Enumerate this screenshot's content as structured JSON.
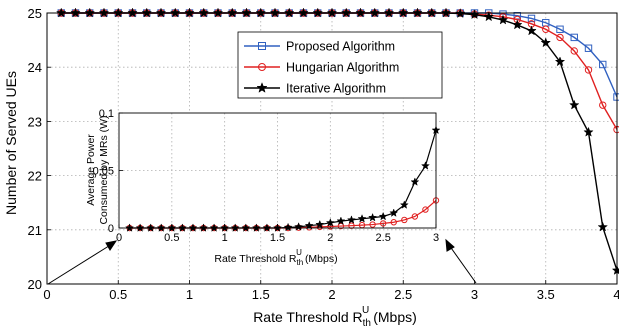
{
  "colors": {
    "proposed": "#3060c0",
    "hungarian": "#e02020",
    "iterative": "#000000"
  },
  "chart_data": [
    {
      "type": "line",
      "title": "",
      "xlabel": "Rate Threshold R",
      "xlabel_sub": "th",
      "xlabel_sup": "U",
      "xlabel_unit": "(Mbps)",
      "ylabel": "Number of Served UEs",
      "xlim": [
        0,
        4
      ],
      "ylim": [
        20,
        25
      ],
      "xticks": [
        "0",
        "0.5",
        "1",
        "1.5",
        "2",
        "2.5",
        "3",
        "3.5",
        "4"
      ],
      "yticks": [
        "20",
        "21",
        "22",
        "23",
        "24",
        "25"
      ],
      "grid": true,
      "legend_position": "top-right",
      "x": [
        0.1,
        0.2,
        0.3,
        0.4,
        0.5,
        0.6,
        0.7,
        0.8,
        0.9,
        1.0,
        1.1,
        1.2,
        1.3,
        1.4,
        1.5,
        1.6,
        1.7,
        1.8,
        1.9,
        2.0,
        2.1,
        2.2,
        2.3,
        2.4,
        2.5,
        2.6,
        2.7,
        2.8,
        2.9,
        3.0,
        3.1,
        3.2,
        3.3,
        3.4,
        3.5,
        3.6,
        3.7,
        3.8,
        3.9,
        4.0
      ],
      "series": [
        {
          "name": "Proposed Algorithm",
          "marker": "square",
          "values": [
            25,
            25,
            25,
            25,
            25,
            25,
            25,
            25,
            25,
            25,
            25,
            25,
            25,
            25,
            25,
            25,
            25,
            25,
            25,
            25,
            25,
            25,
            25,
            25,
            25,
            25,
            25,
            25,
            25,
            25,
            25,
            24.98,
            24.95,
            24.9,
            24.82,
            24.7,
            24.55,
            24.35,
            24.05,
            23.45
          ]
        },
        {
          "name": "Hungarian Algorithm",
          "marker": "circle",
          "values": [
            25,
            25,
            25,
            25,
            25,
            25,
            25,
            25,
            25,
            25,
            25,
            25,
            25,
            25,
            25,
            25,
            25,
            25,
            25,
            25,
            25,
            25,
            25,
            25,
            25,
            25,
            25,
            25,
            25,
            24.98,
            24.96,
            24.93,
            24.88,
            24.8,
            24.7,
            24.55,
            24.3,
            23.95,
            23.3,
            22.85
          ]
        },
        {
          "name": "Iterative Algorithm",
          "marker": "star",
          "values": [
            25,
            25,
            25,
            25,
            25,
            25,
            25,
            25,
            25,
            25,
            25,
            25,
            25,
            25,
            25,
            25,
            25,
            25,
            25,
            25,
            25,
            25,
            25,
            25,
            25,
            25,
            25,
            25,
            24.99,
            24.97,
            24.93,
            24.87,
            24.78,
            24.67,
            24.45,
            24.1,
            23.3,
            22.8,
            21.05,
            20.25
          ]
        }
      ]
    },
    {
      "type": "line",
      "title": "",
      "xlabel": "Rate Threshold R",
      "xlabel_sub": "th",
      "xlabel_sup": "U",
      "xlabel_unit": "(Mbps)",
      "ylabel_line1": "Average Power",
      "ylabel_line2": "Consumed by MRs (W)",
      "xlim": [
        0,
        3
      ],
      "ylim": [
        0,
        0.1
      ],
      "xticks": [
        "0",
        "0.5",
        "1",
        "1.5",
        "2",
        "2.5",
        "3"
      ],
      "yticks": [
        "0",
        "0.05",
        "0.1"
      ],
      "grid": true,
      "x": [
        0.1,
        0.2,
        0.3,
        0.4,
        0.5,
        0.6,
        0.7,
        0.8,
        0.9,
        1.0,
        1.1,
        1.2,
        1.3,
        1.4,
        1.5,
        1.6,
        1.7,
        1.8,
        1.9,
        2.0,
        2.1,
        2.2,
        2.3,
        2.4,
        2.5,
        2.6,
        2.7,
        2.8,
        2.9,
        3.0
      ],
      "series": [
        {
          "name": "Hungarian Algorithm",
          "marker": "circle",
          "values": [
            0,
            0,
            0,
            0,
            0,
            0,
            0,
            0,
            0,
            0,
            0,
            0,
            0,
            0,
            0,
            0,
            0.0003,
            0.0006,
            0.001,
            0.0013,
            0.0017,
            0.002,
            0.0025,
            0.003,
            0.004,
            0.005,
            0.007,
            0.01,
            0.016,
            0.024
          ]
        },
        {
          "name": "Iterative Algorithm",
          "marker": "star",
          "values": [
            0,
            0,
            0,
            0,
            0,
            0,
            0,
            0,
            0,
            0,
            0,
            0,
            0,
            0,
            0,
            0.0005,
            0.001,
            0.002,
            0.003,
            0.0045,
            0.006,
            0.007,
            0.008,
            0.009,
            0.01,
            0.013,
            0.02,
            0.04,
            0.054,
            0.085
          ]
        }
      ]
    }
  ]
}
